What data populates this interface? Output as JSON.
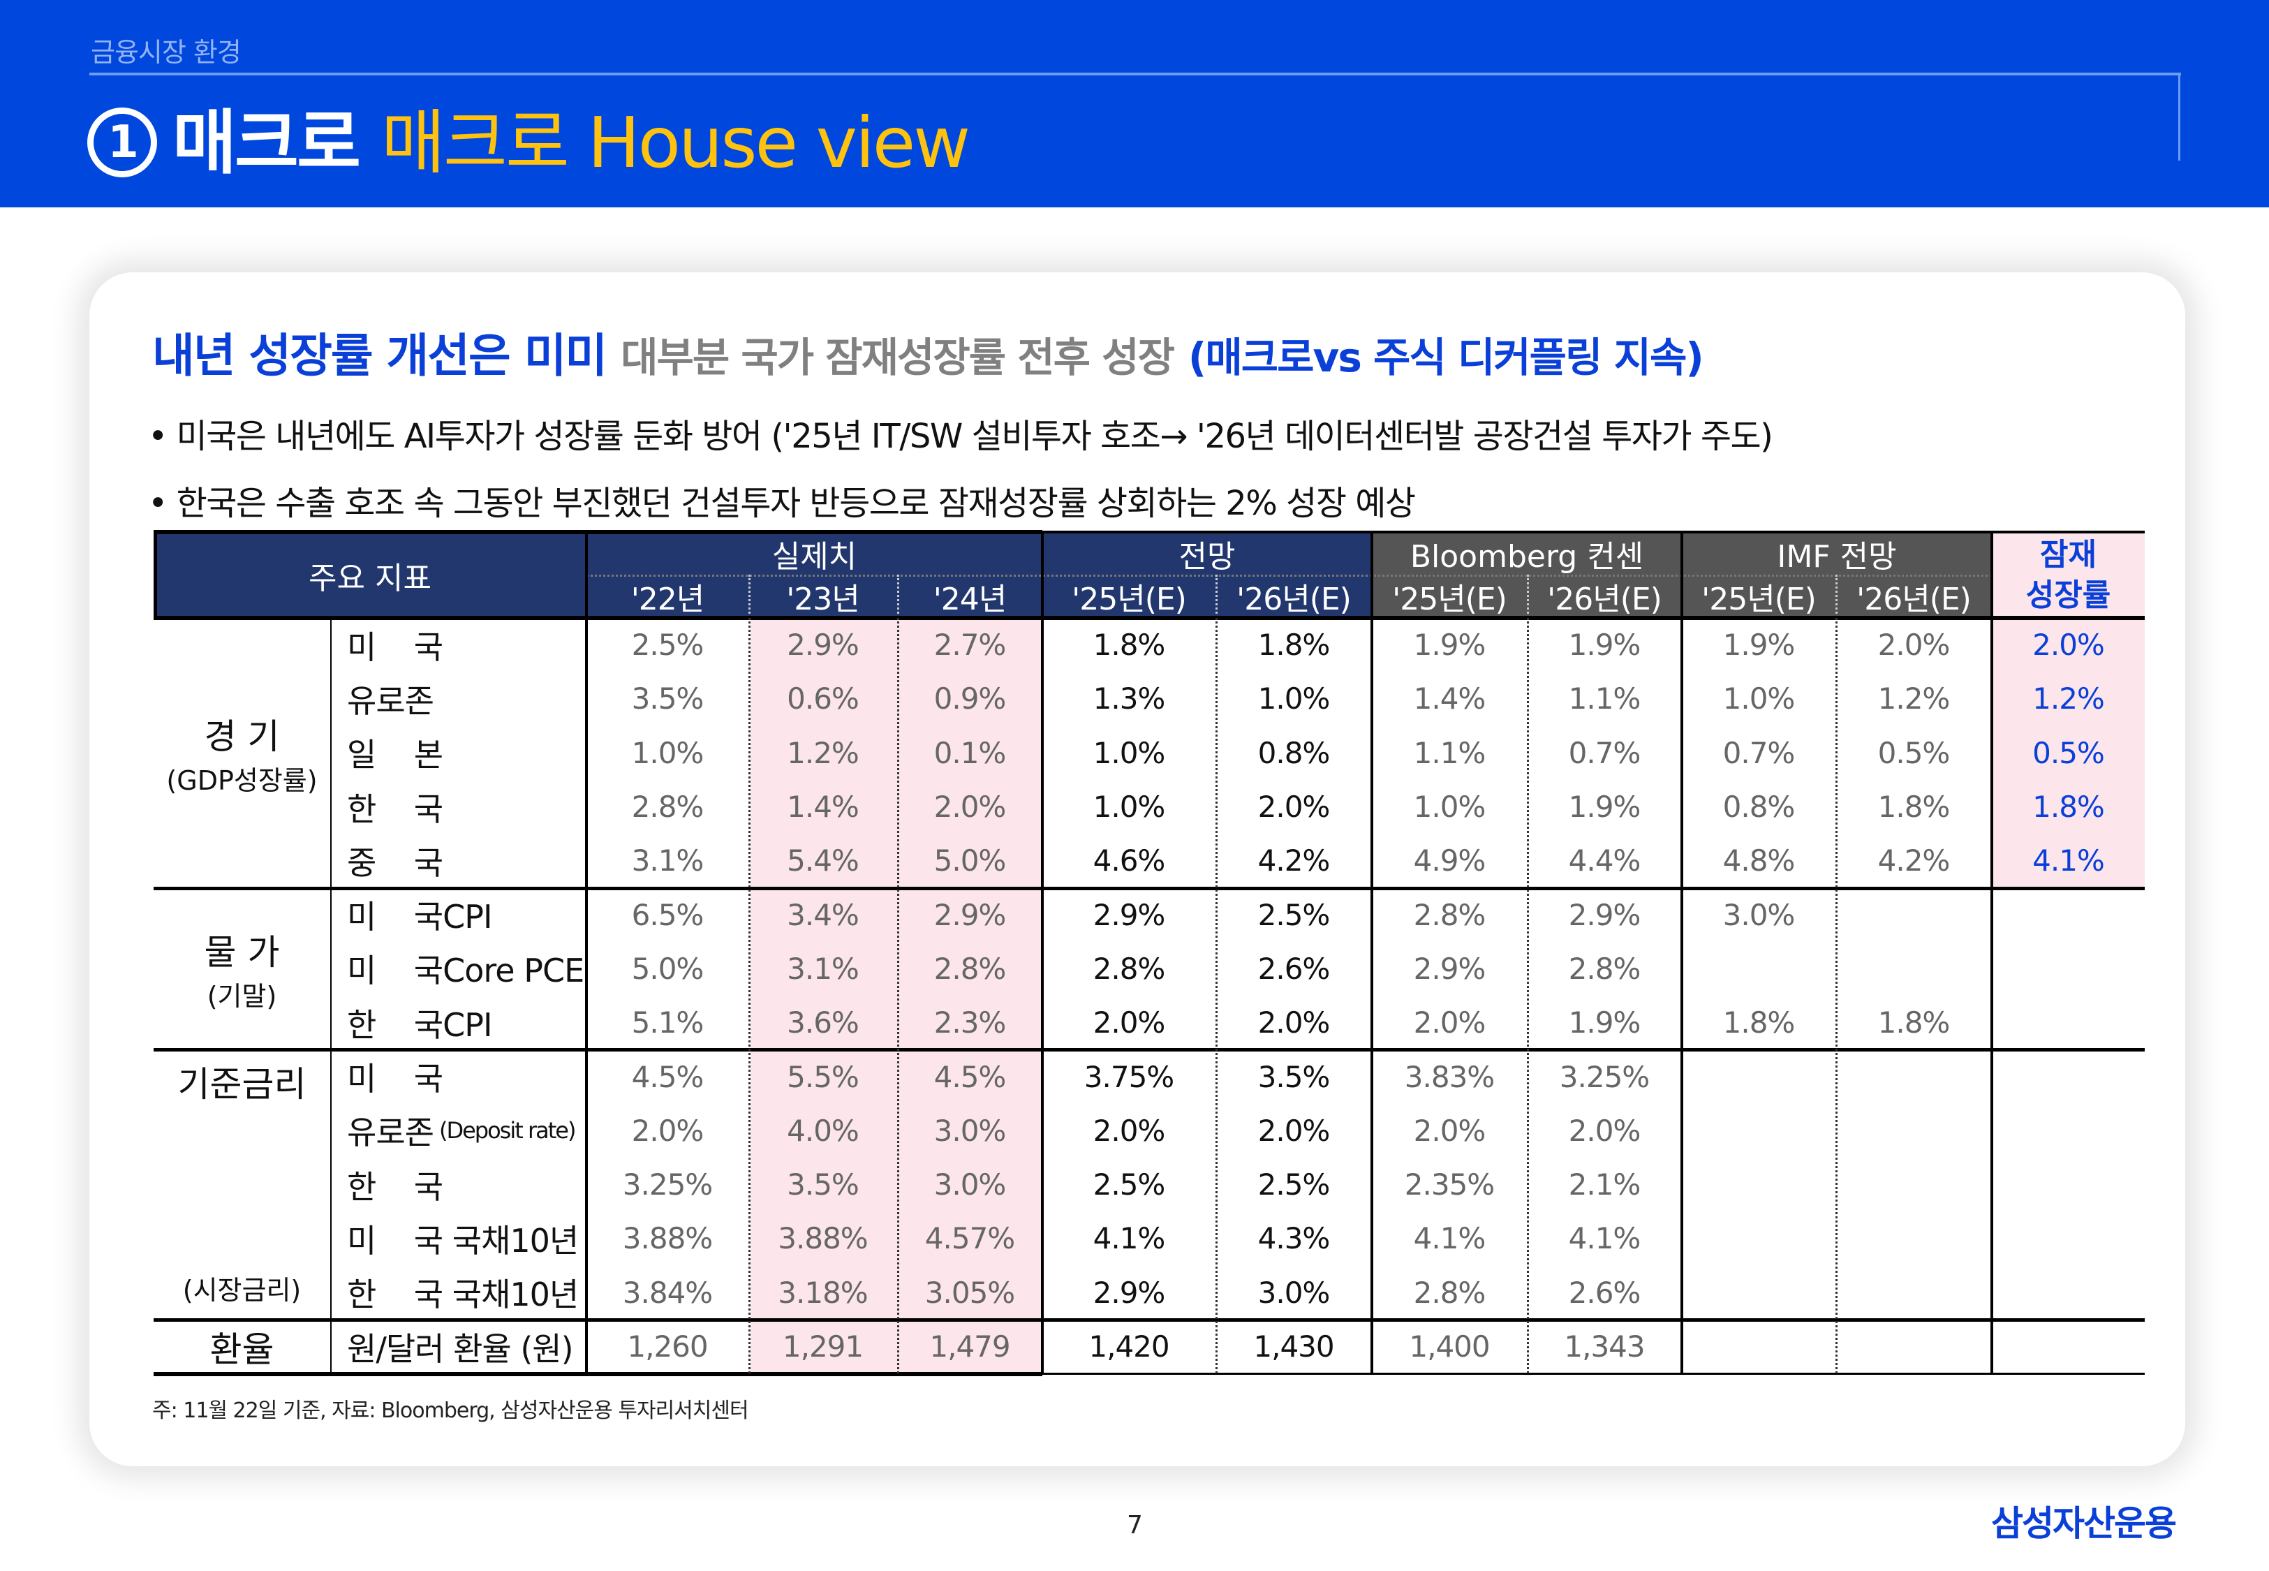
{
  "header": {
    "breadcrumb": "금융시장 환경",
    "section_number": "1",
    "title_white": "매크로",
    "title_yellow": "매크로 House view",
    "colors": {
      "background": "#0047DD",
      "accent_yellow": "#FFC20E",
      "line": "#6E9BF4"
    }
  },
  "headline": {
    "main": "내년 성장률 개선은 미미",
    "sub": "대부분 국가 잠재성장률 전후 성장",
    "highlight": "(매크로vs 주식 디커플링 지속)"
  },
  "bullets": [
    "• 미국은 내년에도 AI투자가 성장률 둔화 방어 ('25년 IT/SW 설비투자 호조→ '26년 데이터센터발 공장건설 투자가 주도)",
    "• 한국은 수출 호조 속 그동안 부진했던 건설투자 반등으로 잠재성장률 상회하는 2% 성장 예상"
  ],
  "table": {
    "header": {
      "key_indicators": "주요 지표",
      "groups": [
        "실제치",
        "전망",
        "Bloomberg 컨센",
        "IMF 전망"
      ],
      "potential_growth_line1": "잠재",
      "potential_growth_line2": "성장률",
      "years": [
        "'22년",
        "'23년",
        "'24년",
        "'25년(E)",
        "'26년(E)",
        "'25년(E)",
        "'26년(E)",
        "'25년(E)",
        "'26년(E)"
      ]
    },
    "groups": [
      {
        "name": "경  기",
        "sub": "(GDP성장률)"
      },
      {
        "name": "물  가",
        "sub": "(기말)"
      },
      {
        "name": "기준금리",
        "sub": "(시장금리)"
      },
      {
        "name": "환율",
        "sub": ""
      }
    ],
    "rows": [
      {
        "label": "미    국",
        "values": [
          "2.5%",
          "2.9%",
          "2.7%",
          "1.8%",
          "1.8%",
          "1.9%",
          "1.9%",
          "1.9%",
          "2.0%",
          "2.0%"
        ]
      },
      {
        "label": "유로존",
        "values": [
          "3.5%",
          "0.6%",
          "0.9%",
          "1.3%",
          "1.0%",
          "1.4%",
          "1.1%",
          "1.0%",
          "1.2%",
          "1.2%"
        ]
      },
      {
        "label": "일    본",
        "values": [
          "1.0%",
          "1.2%",
          "0.1%",
          "1.0%",
          "0.8%",
          "1.1%",
          "0.7%",
          "0.7%",
          "0.5%",
          "0.5%"
        ]
      },
      {
        "label": "한    국",
        "values": [
          "2.8%",
          "1.4%",
          "2.0%",
          "1.0%",
          "2.0%",
          "1.0%",
          "1.9%",
          "0.8%",
          "1.8%",
          "1.8%"
        ]
      },
      {
        "label": "중    국",
        "values": [
          "3.1%",
          "5.4%",
          "5.0%",
          "4.6%",
          "4.2%",
          "4.9%",
          "4.4%",
          "4.8%",
          "4.2%",
          "4.1%"
        ]
      },
      {
        "label": "미    국CPI",
        "values": [
          "6.5%",
          "3.4%",
          "2.9%",
          "2.9%",
          "2.5%",
          "2.8%",
          "2.9%",
          "3.0%",
          "",
          ""
        ]
      },
      {
        "label": "미    국Core PCE",
        "values": [
          "5.0%",
          "3.1%",
          "2.8%",
          "2.8%",
          "2.6%",
          "2.9%",
          "2.8%",
          "",
          "",
          ""
        ]
      },
      {
        "label": "한    국CPI",
        "values": [
          "5.1%",
          "3.6%",
          "2.3%",
          "2.0%",
          "2.0%",
          "2.0%",
          "1.9%",
          "1.8%",
          "1.8%",
          ""
        ]
      },
      {
        "label": "미    국",
        "values": [
          "4.5%",
          "5.5%",
          "4.5%",
          "3.75%",
          "3.5%",
          "3.83%",
          "3.25%",
          "",
          "",
          ""
        ]
      },
      {
        "label": "유로존",
        "label_small": "(Deposit rate)",
        "values": [
          "2.0%",
          "4.0%",
          "3.0%",
          "2.0%",
          "2.0%",
          "2.0%",
          "2.0%",
          "",
          "",
          ""
        ]
      },
      {
        "label": "한    국",
        "values": [
          "3.25%",
          "3.5%",
          "3.0%",
          "2.5%",
          "2.5%",
          "2.35%",
          "2.1%",
          "",
          "",
          ""
        ]
      },
      {
        "label": "미    국 국채10년",
        "values": [
          "3.88%",
          "3.88%",
          "4.57%",
          "4.1%",
          "4.3%",
          "4.1%",
          "4.1%",
          "",
          "",
          ""
        ]
      },
      {
        "label": "한    국 국채10년",
        "values": [
          "3.84%",
          "3.18%",
          "3.05%",
          "2.9%",
          "3.0%",
          "2.8%",
          "2.6%",
          "",
          "",
          ""
        ]
      },
      {
        "label": "원/달러 환율 (원)",
        "values": [
          "1,260",
          "1,291",
          "1,479",
          "1,420",
          "1,430",
          "1,400",
          "1,343",
          "",
          "",
          ""
        ]
      }
    ],
    "colors": {
      "navy": "#22376E",
      "gray": "#555555",
      "pink": "#FCE6EC",
      "blue": "#0A3FD8"
    }
  },
  "footnote": "주: 11월 22일 기준, 자료: Bloomberg, 삼성자산운용 투자리서치센터",
  "page_number": "7",
  "logo": "삼성자산운용"
}
